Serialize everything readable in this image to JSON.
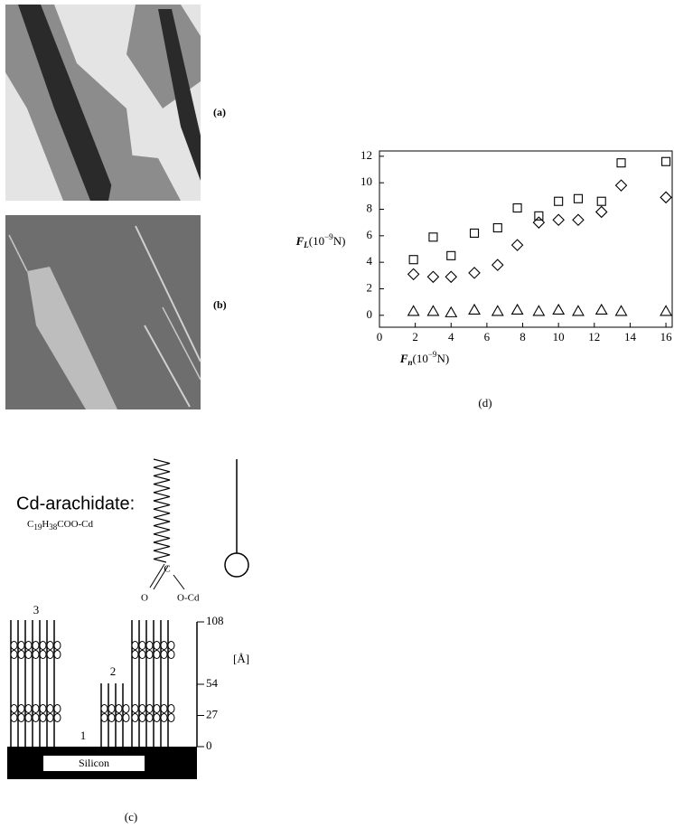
{
  "panels": {
    "a": "(a)",
    "b": "(b)",
    "c": "(c)",
    "d": "(d)"
  },
  "structure": {
    "name": "Cd-arachidate:",
    "formula": [
      {
        "text": "C"
      },
      {
        "text": "19",
        "sub": true
      },
      {
        "text": "H"
      },
      {
        "text": "38",
        "sub": true
      },
      {
        "text": "COO-Cd"
      }
    ],
    "carbon": "C",
    "oxygen": "O",
    "ocd": "O-Cd"
  },
  "layers": {
    "labels": [
      "3",
      "2",
      "1"
    ],
    "substrate": "Silicon",
    "unit": "[Å]",
    "scale_ticks": [
      0,
      27,
      54,
      108
    ]
  },
  "chart_data": {
    "type": "scatter",
    "x": [
      1.9,
      3,
      4,
      5.3,
      6.6,
      7.7,
      8.9,
      10,
      11.1,
      12.4,
      13.5,
      16
    ],
    "series": [
      {
        "marker": "square",
        "color": "#000000",
        "values": [
          4.2,
          5.9,
          4.5,
          6.2,
          6.6,
          8.1,
          7.5,
          8.6,
          8.8,
          8.6,
          11.5,
          11.6
        ]
      },
      {
        "marker": "diamond",
        "color": "#000000",
        "values": [
          3.1,
          2.9,
          2.9,
          3.2,
          3.8,
          5.3,
          7.0,
          7.2,
          7.2,
          7.8,
          9.8,
          8.9
        ]
      },
      {
        "marker": "triangle",
        "color": "#000000",
        "values": [
          0.3,
          0.3,
          0.2,
          0.4,
          0.3,
          0.4,
          0.3,
          0.4,
          0.3,
          0.4,
          0.3,
          0.3
        ]
      }
    ],
    "xlim": [
      0,
      16.4
    ],
    "ylim": [
      -0.9,
      12.4
    ],
    "xticks": [
      0,
      2,
      4,
      6,
      8,
      10,
      12,
      14,
      16
    ],
    "yticks": [
      0,
      2,
      4,
      6,
      8,
      10,
      12
    ],
    "xlabel": {
      "symbol": "F",
      "sub": "n",
      "pre": "(10",
      "sup": "−9",
      "post": "N)"
    },
    "ylabel": {
      "symbol": "F",
      "sub": "L",
      "pre": "(10",
      "sup": "−9",
      "post": "N)"
    }
  }
}
